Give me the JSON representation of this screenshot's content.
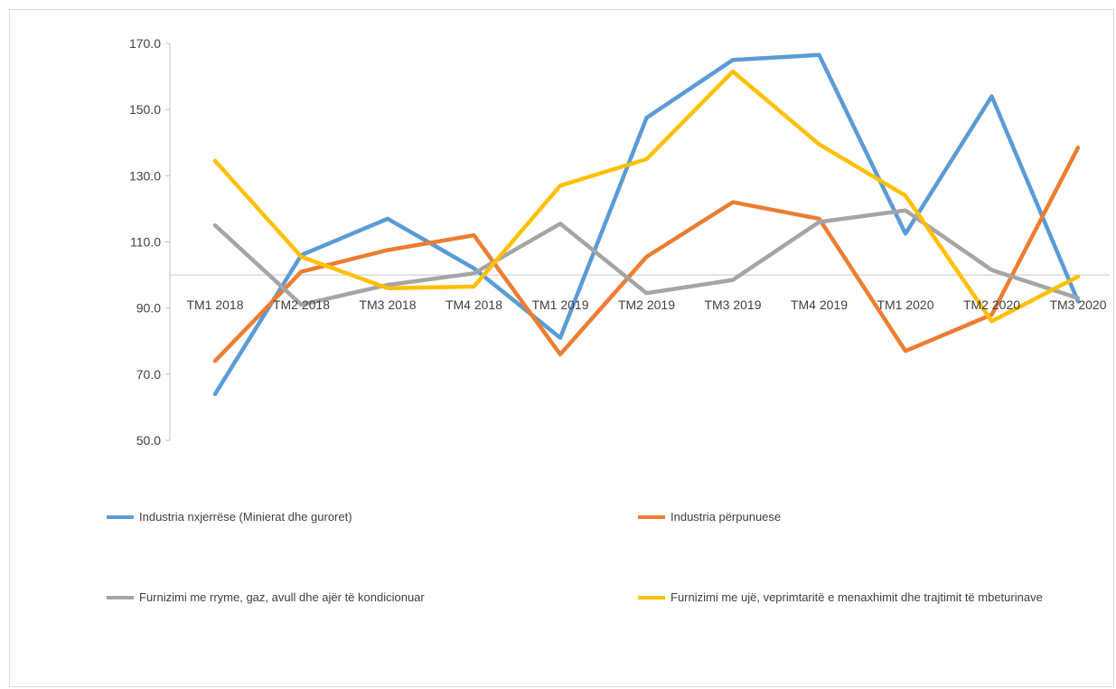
{
  "chart_data": {
    "type": "line",
    "categories": [
      "TM1 2018",
      "TM2 2018",
      "TM3 2018",
      "TM4 2018",
      "TM1 2019",
      "TM2 2019",
      "TM3 2019",
      "TM4 2019",
      "TM1 2020",
      "TM2 2020",
      "TM3 2020"
    ],
    "ylim": [
      50,
      170
    ],
    "yticks": [
      "50.0",
      "70.0",
      "90.0",
      "110.0",
      "130.0",
      "150.0",
      "170.0"
    ],
    "baseline": 100,
    "grid": false,
    "legend_position": "bottom",
    "series": [
      {
        "name": "Industria nxjerrëse (Minierat dhe guroret)",
        "color": "#5B9BD5",
        "values": [
          64,
          106,
          117,
          102,
          81,
          147.5,
          165,
          166.5,
          112.5,
          154,
          92
        ]
      },
      {
        "name": "Industria përpunuese",
        "color": "#ED7D31",
        "values": [
          74,
          101,
          107.5,
          112,
          76,
          105.5,
          122,
          117,
          77,
          88,
          138.5
        ]
      },
      {
        "name": "Furnizimi me rryme, gaz, avull dhe ajër të kondicionuar",
        "color": "#A5A5A5",
        "values": [
          115,
          91,
          97,
          100.5,
          115.5,
          94.5,
          98.5,
          116,
          119.5,
          101.5,
          93
        ]
      },
      {
        "name": "Furnizimi me ujë, veprimtaritë e menaxhimit dhe trajtimit të mbeturinave",
        "color": "#FFC000",
        "values": [
          134.5,
          105.5,
          96,
          96.5,
          127,
          135,
          161.5,
          139.5,
          124,
          86,
          99.5
        ]
      }
    ]
  }
}
